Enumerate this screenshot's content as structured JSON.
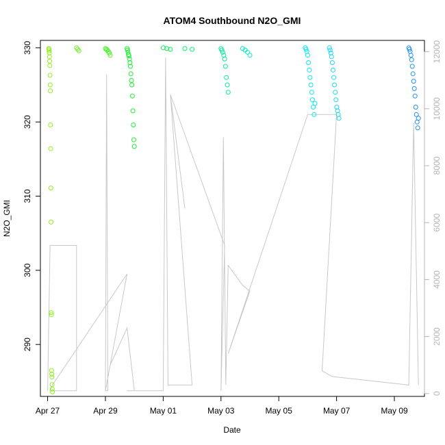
{
  "chart_data": {
    "type": "scatter",
    "title": "ATOM4 Southbound N2O_GMI",
    "xlabel": "Date",
    "ylabel": "N2O_GMI",
    "xlim": [
      "2018-04-26 18:00",
      "2018-05-10 01:00"
    ],
    "ylim": [
      283,
      331
    ],
    "y2lim": [
      -100,
      12400
    ],
    "x_ticks": [
      "Apr 27",
      "Apr 29",
      "May 01",
      "May 03",
      "May 05",
      "May 07",
      "May 09"
    ],
    "x_tick_dates": [
      "2018-04-27",
      "2018-04-29",
      "2018-05-01",
      "2018-05-03",
      "2018-05-05",
      "2018-05-07",
      "2018-05-09"
    ],
    "y_ticks": [
      290,
      300,
      310,
      320,
      330
    ],
    "y2_ticks": [
      0,
      2000,
      4000,
      6000,
      8000,
      10000,
      12000
    ],
    "grid": false,
    "series": [
      {
        "axis": "left",
        "color_scale": "time-colored points (green to blue)",
        "groups": [
          {
            "start": "2018-04-27 01:00",
            "end": "2018-04-27 04:00",
            "color": "#8ef01a",
            "values": [
              329.9,
              329.8,
              329.6,
              329.3,
              328.8,
              328.2,
              327.6,
              326.3,
              325.0,
              324.2,
              319.6,
              316.4,
              311.1,
              306.5,
              294.3,
              294.0,
              286.5,
              286.0,
              285.6,
              284.6,
              284.0,
              283.6
            ]
          },
          {
            "start": "2018-04-28 00:00",
            "end": "2018-04-28 02:00",
            "color": "#6ff020",
            "values": [
              330.0,
              329.8,
              329.6
            ]
          },
          {
            "start": "2018-04-29 00:00",
            "end": "2018-04-29 04:00",
            "color": "#4cf028",
            "values": [
              329.9,
              329.8,
              329.7,
              329.5,
              329.3,
              329.0
            ]
          },
          {
            "start": "2018-04-29 18:00",
            "end": "2018-04-30 00:00",
            "color": "#18f030",
            "values": [
              329.9,
              329.7,
              329.4,
              329.1,
              328.9,
              328.5,
              328.0,
              327.5,
              326.5,
              325.6,
              325.0,
              323.5,
              321.5,
              319.6,
              317.6,
              316.7
            ]
          },
          {
            "start": "2018-05-01 00:00",
            "end": "2018-05-01 06:00",
            "color": "#06f050",
            "values": [
              330.0,
              329.9,
              329.8
            ]
          },
          {
            "start": "2018-05-01 18:00",
            "end": "2018-05-02 00:00",
            "color": "#06f070",
            "values": [
              329.9,
              329.8
            ]
          },
          {
            "start": "2018-05-03 00:00",
            "end": "2018-05-03 06:00",
            "color": "#06e8a0",
            "values": [
              329.9,
              329.7,
              329.4,
              329.0,
              328.5,
              327.5,
              326.0,
              325.0,
              324.0
            ]
          },
          {
            "start": "2018-05-03 18:00",
            "end": "2018-05-04 00:00",
            "color": "#06e8c0",
            "values": [
              329.9,
              329.7,
              329.4,
              329.0
            ]
          },
          {
            "start": "2018-05-05 22:00",
            "end": "2018-05-06 06:00",
            "color": "#06e8f0",
            "values": [
              330.0,
              329.8,
              329.5,
              329.0,
              328.0,
              327.0,
              326.0,
              325.0,
              324.0,
              323.0,
              322.0,
              321.0,
              322.5
            ]
          },
          {
            "start": "2018-05-06 18:00",
            "end": "2018-05-07 02:00",
            "color": "#18d8f0",
            "values": [
              330.0,
              329.7,
              329.3,
              328.8,
              328.0,
              327.0,
              326.0,
              325.0,
              324.0,
              323.0,
              322.0,
              321.5,
              321.0,
              320.5
            ]
          },
          {
            "start": "2018-05-09 12:00",
            "end": "2018-05-09 20:00",
            "color": "#1e90f0",
            "values": [
              330.0,
              329.8,
              329.5,
              329.0,
              328.4,
              327.5,
              326.5,
              325.5,
              324.5,
              323.5,
              322.0,
              321.0,
              320.0,
              319.2,
              320.5
            ]
          }
        ]
      },
      {
        "axis": "right",
        "type": "line",
        "color": "#c8c8c8",
        "x": [
          "2018-04-27 00:00",
          "2018-04-27 02:00",
          "2018-04-27 04:00",
          "2018-04-28 00:00",
          "2018-04-28 00:00",
          "2018-04-27 02:00",
          "2018-04-27 04:00",
          "2018-04-29 18:00",
          "2018-04-29 00:00",
          "2018-04-29 01:00",
          "2018-04-29 02:00",
          "2018-04-29 00:00",
          "2018-04-29 04:00",
          "2018-04-29 18:00",
          "2018-04-30 00:00",
          "2018-04-29 18:00",
          "2018-05-01 00:00",
          "2018-05-01 02:00",
          "2018-05-01 04:00",
          "2018-05-02 00:00",
          "2018-05-01 06:00",
          "2018-05-01 18:00",
          "2018-05-01 06:00",
          "2018-05-03 03:00",
          "2018-05-03 00:00",
          "2018-05-03 02:00",
          "2018-05-03 04:00",
          "2018-05-03 06:00",
          "2018-05-03 18:00",
          "2018-05-04 00:00",
          "2018-05-03 06:00",
          "2018-05-06 00:00",
          "2018-05-06 04:00",
          "2018-05-07 00:00",
          "2018-05-06 12:00",
          "2018-05-06 20:00",
          "2018-05-09 12:00",
          "2018-05-09 16:00",
          "2018-05-09 20:00"
        ],
        "values": [
          100,
          5200,
          5200,
          5200,
          100,
          100,
          300,
          4200,
          100,
          11200,
          100,
          100,
          1000,
          2300,
          100,
          100,
          100,
          11800,
          300,
          300,
          10500,
          6500,
          10500,
          5200,
          100,
          9000,
          300,
          4500,
          3800,
          3600,
          1400,
          9800,
          9800,
          9800,
          800,
          600,
          300,
          9500,
          300
        ]
      }
    ]
  }
}
